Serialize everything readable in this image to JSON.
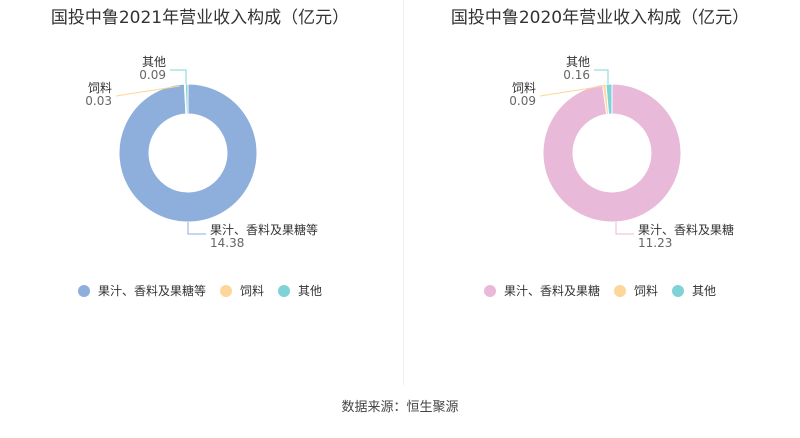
{
  "chart_data": [
    {
      "type": "pie",
      "title": "国投中鲁2021年营业收入构成（亿元）",
      "categories": [
        "果汁、香料及果糖等",
        "饲料",
        "其他"
      ],
      "values": [
        14.38,
        0.03,
        0.09
      ],
      "colors": [
        "#8eaedb",
        "#fdd699",
        "#7fd3d6"
      ],
      "legend": "bottom"
    },
    {
      "type": "pie",
      "title": "国投中鲁2020年营业收入构成（亿元）",
      "categories": [
        "果汁、香料及果糖",
        "饲料",
        "其他"
      ],
      "values": [
        11.23,
        0.09,
        0.16
      ],
      "colors": [
        "#e8b9d8",
        "#fdd699",
        "#7fd3d6"
      ],
      "legend": "bottom"
    }
  ],
  "footer": "数据来源：恒生聚源"
}
